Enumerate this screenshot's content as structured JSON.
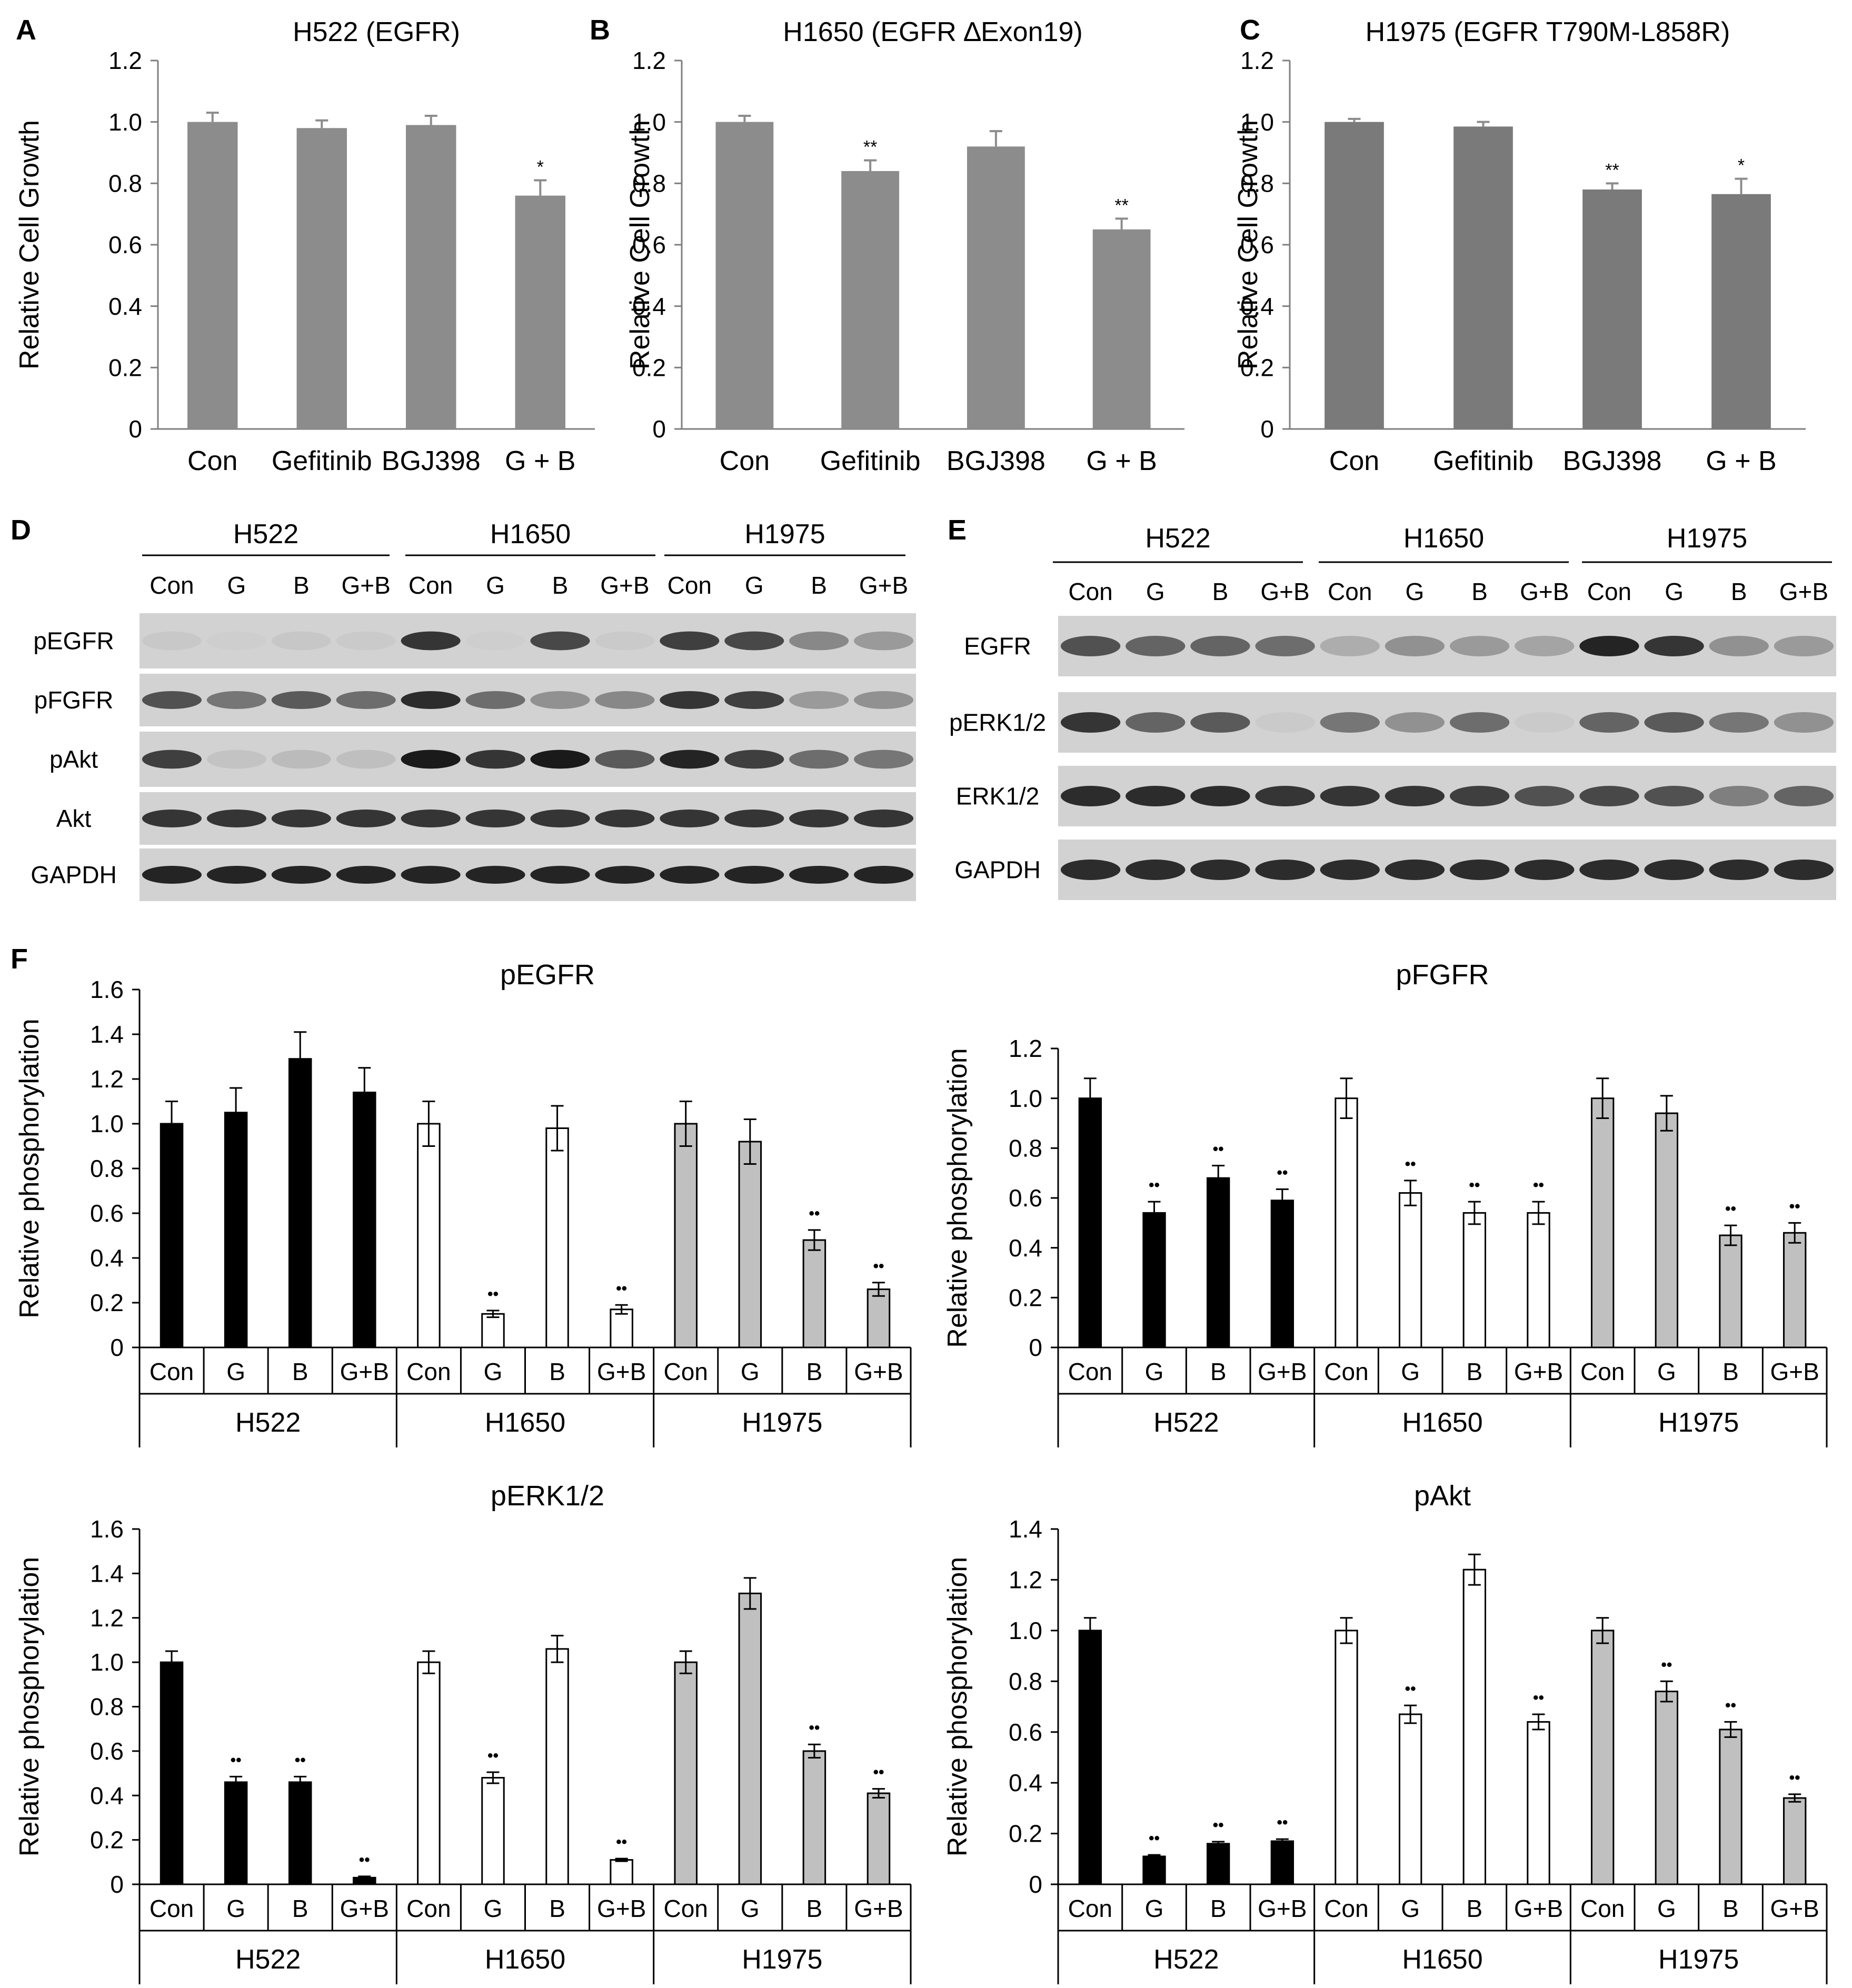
{
  "panels": {
    "growth": [
      {
        "letter": "A",
        "title": "H522 (EGFR)"
      },
      {
        "letter": "B",
        "title": "H1650 (EGFR ∆Exon19)"
      },
      {
        "letter": "C",
        "title": "H1975 (EGFR T790M-L858R)"
      }
    ],
    "blots": [
      {
        "letter": "D",
        "cell_lines": [
          "H522",
          "H1650",
          "H1975"
        ],
        "lanes": [
          "Con",
          "G",
          "B",
          "G+B",
          "Con",
          "G",
          "B",
          "G+B",
          "Con",
          "G",
          "B",
          "G+B"
        ],
        "rows": [
          "pEGFR",
          "pFGFR",
          "pAkt",
          "Akt",
          "GAPDH"
        ]
      },
      {
        "letter": "E",
        "cell_lines": [
          "H522",
          "H1650",
          "H1975"
        ],
        "lanes": [
          "Con",
          "G",
          "B",
          "G+B",
          "Con",
          "G",
          "B",
          "G+B",
          "Con",
          "G",
          "B",
          "G+B"
        ],
        "rows": [
          "EGFR",
          "pERK1/2",
          "ERK1/2",
          "GAPDH"
        ]
      }
    ],
    "quant_letter": "F"
  },
  "colors": {
    "growth_bar": "#8c8c8c",
    "growth_bar_c": "#7a7a7a",
    "h522": "#000000",
    "h1650": "#ffffff",
    "h1975": "#c0c0c0",
    "axis": "#595959"
  },
  "chart_data": [
    {
      "type": "bar",
      "title": "H522 (EGFR)",
      "ylabel": "Relative Cell Growth",
      "ylim": [
        0,
        1.2
      ],
      "yticks": [
        "0",
        "0.2",
        "0.4",
        "0.6",
        "0.8",
        "1.0",
        "1.2"
      ],
      "categories": [
        "Con",
        "Gefitinib",
        "BGJ398",
        "G + B"
      ],
      "values": [
        1.0,
        0.98,
        0.99,
        0.76
      ],
      "errors": [
        0.03,
        0.025,
        0.03,
        0.05
      ],
      "annotations": [
        "",
        "",
        "",
        "*"
      ]
    },
    {
      "type": "bar",
      "title": "H1650 (EGFR ∆Exon19)",
      "ylabel": "Relative Cell Growth",
      "ylim": [
        0,
        1.2
      ],
      "yticks": [
        "0",
        "0.2",
        "0.4",
        "0.6",
        "0.8",
        "1.0",
        "1.2"
      ],
      "categories": [
        "Con",
        "Gefitinib",
        "BGJ398",
        "G + B"
      ],
      "values": [
        1.0,
        0.84,
        0.92,
        0.65
      ],
      "errors": [
        0.02,
        0.035,
        0.05,
        0.035
      ],
      "annotations": [
        "",
        "**",
        "",
        "**"
      ]
    },
    {
      "type": "bar",
      "title": "H1975 (EGFR T790M-L858R)",
      "ylabel": "Relative Cell Growth",
      "ylim": [
        0,
        1.2
      ],
      "yticks": [
        "0",
        "0.2",
        "0.4",
        "0.6",
        "0.8",
        "1.0",
        "1.2"
      ],
      "categories": [
        "Con",
        "Gefitinib",
        "BGJ398",
        "G + B"
      ],
      "values": [
        1.0,
        0.985,
        0.78,
        0.765
      ],
      "errors": [
        0.01,
        0.015,
        0.02,
        0.05
      ],
      "annotations": [
        "",
        "",
        "**",
        "*"
      ]
    },
    {
      "type": "bar",
      "title": "pEGFR",
      "ylabel": "Relative phosphorylation",
      "ylim": [
        0,
        1.6
      ],
      "yticks": [
        "0",
        "0.2",
        "0.4",
        "0.6",
        "0.8",
        "1.0",
        "1.2",
        "1.4",
        "1.6"
      ],
      "groups": [
        "H522",
        "H1650",
        "H1975"
      ],
      "categories": [
        "Con",
        "G",
        "B",
        "G+B",
        "Con",
        "G",
        "B",
        "G+B",
        "Con",
        "G",
        "B",
        "G+B"
      ],
      "values": [
        1.0,
        1.05,
        1.29,
        1.14,
        1.0,
        0.15,
        0.98,
        0.17,
        1.0,
        0.92,
        0.48,
        0.26
      ],
      "errors": [
        0.1,
        0.11,
        0.12,
        0.11,
        0.1,
        0.015,
        0.1,
        0.02,
        0.1,
        0.1,
        0.045,
        0.03
      ],
      "annotations": [
        "",
        "",
        "",
        "",
        "",
        "••",
        "",
        "••",
        "",
        "",
        "••",
        "••"
      ]
    },
    {
      "type": "bar",
      "title": "pFGFR",
      "ylabel": "Relative phosphorylation",
      "ylim": [
        0,
        1.2
      ],
      "yticks": [
        "0",
        "0.2",
        "0.4",
        "0.6",
        "0.8",
        "1.0",
        "1.2"
      ],
      "groups": [
        "H522",
        "H1650",
        "H1975"
      ],
      "categories": [
        "Con",
        "G",
        "B",
        "G+B",
        "Con",
        "G",
        "B",
        "G+B",
        "Con",
        "G",
        "B",
        "G+B"
      ],
      "values": [
        1.0,
        0.54,
        0.68,
        0.59,
        1.0,
        0.62,
        0.54,
        0.54,
        1.0,
        0.94,
        0.45,
        0.46
      ],
      "errors": [
        0.08,
        0.045,
        0.05,
        0.045,
        0.08,
        0.05,
        0.045,
        0.045,
        0.08,
        0.07,
        0.04,
        0.04
      ],
      "annotations": [
        "",
        "••",
        "••",
        "••",
        "",
        "••",
        "••",
        "••",
        "",
        "",
        "••",
        "••"
      ]
    },
    {
      "type": "bar",
      "title": "pERK1/2",
      "ylabel": "Relative phosphorylation",
      "ylim": [
        0,
        1.6
      ],
      "yticks": [
        "0",
        "0.2",
        "0.4",
        "0.6",
        "0.8",
        "1.0",
        "1.2",
        "1.4",
        "1.6"
      ],
      "groups": [
        "H522",
        "H1650",
        "H1975"
      ],
      "categories": [
        "Con",
        "G",
        "B",
        "G+B",
        "Con",
        "G",
        "B",
        "G+B",
        "Con",
        "G",
        "B",
        "G+B"
      ],
      "values": [
        1.0,
        0.46,
        0.46,
        0.03,
        1.0,
        0.48,
        1.06,
        0.11,
        1.0,
        1.31,
        0.6,
        0.41
      ],
      "errors": [
        0.05,
        0.025,
        0.025,
        0.006,
        0.05,
        0.025,
        0.06,
        0.006,
        0.05,
        0.07,
        0.03,
        0.02
      ],
      "annotations": [
        "",
        "••",
        "••",
        "••",
        "",
        "••",
        "",
        "••",
        "",
        "",
        "••",
        "••"
      ]
    },
    {
      "type": "bar",
      "title": "pAkt",
      "ylabel": "Relative phosphorylation",
      "ylim": [
        0,
        1.4
      ],
      "yticks": [
        "0",
        "0.2",
        "0.4",
        "0.6",
        "0.8",
        "1.0",
        "1.2",
        "1.4"
      ],
      "groups": [
        "H522",
        "H1650",
        "H1975"
      ],
      "categories": [
        "Con",
        "G",
        "B",
        "G+B",
        "Con",
        "G",
        "B",
        "G+B",
        "Con",
        "G",
        "B",
        "G+B"
      ],
      "values": [
        1.0,
        0.11,
        0.16,
        0.17,
        1.0,
        0.67,
        1.24,
        0.64,
        1.0,
        0.76,
        0.61,
        0.34
      ],
      "errors": [
        0.05,
        0.006,
        0.008,
        0.008,
        0.05,
        0.035,
        0.06,
        0.03,
        0.05,
        0.04,
        0.03,
        0.015
      ],
      "annotations": [
        "",
        "••",
        "••",
        "••",
        "",
        "••",
        "",
        "••",
        "",
        "••",
        "••",
        "••"
      ]
    }
  ]
}
